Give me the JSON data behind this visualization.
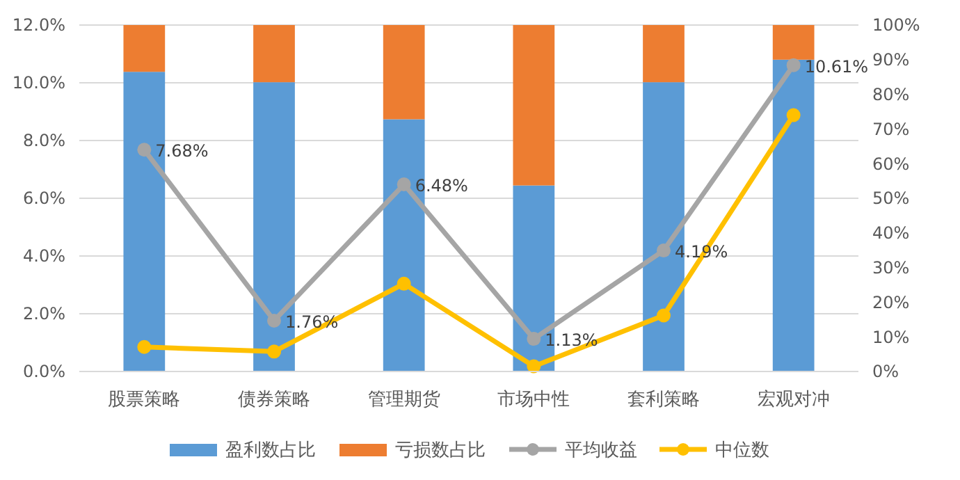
{
  "chart_data": {
    "type": "bar",
    "stacked": true,
    "categories": [
      "股票策略",
      "债券策略",
      "管理期货",
      "市场中性",
      "套利策略",
      "宏观对冲"
    ],
    "series": [
      {
        "name": "盈利数占比",
        "color": "#5b9bd5",
        "axis": "y2",
        "values": [
          86.5,
          83.5,
          72.8,
          53.7,
          83.5,
          90
        ]
      },
      {
        "name": "亏损数占比",
        "color": "#ed7d31",
        "axis": "y2",
        "values": [
          13.5,
          16.5,
          27.2,
          46.3,
          16.5,
          10
        ]
      },
      {
        "name": "平均收益",
        "type": "line",
        "color": "#a5a5a5",
        "marker": "circle",
        "values": [
          7.68,
          1.76,
          6.48,
          1.13,
          4.19,
          10.61
        ],
        "value_labels": [
          "7.68%",
          "1.76%",
          "6.48%",
          "1.13%",
          "4.19%",
          "10.61%"
        ]
      },
      {
        "name": "中位数",
        "type": "line",
        "color": "#ffc000",
        "marker": "circle",
        "values": [
          0.85,
          0.69,
          3.04,
          0.18,
          1.94,
          8.88
        ]
      }
    ],
    "ylim": [
      0,
      12
    ],
    "yticks": [
      {
        "value": 0,
        "label": "0.0%"
      },
      {
        "value": 2,
        "label": "2.0%"
      },
      {
        "value": 4,
        "label": "4.0%"
      },
      {
        "value": 6,
        "label": "6.0%"
      },
      {
        "value": 8,
        "label": "8.0%"
      },
      {
        "value": 10,
        "label": "10.0%"
      },
      {
        "value": 12,
        "label": "12.0%"
      }
    ],
    "y2lim": [
      0,
      100
    ],
    "y2ticks": [
      {
        "value": 0,
        "label": "0%"
      },
      {
        "value": 10,
        "label": "10%"
      },
      {
        "value": 20,
        "label": "20%"
      },
      {
        "value": 30,
        "label": "30%"
      },
      {
        "value": 40,
        "label": "40%"
      },
      {
        "value": 50,
        "label": "50%"
      },
      {
        "value": 60,
        "label": "60%"
      },
      {
        "value": 70,
        "label": "70%"
      },
      {
        "value": 80,
        "label": "80%"
      },
      {
        "value": 90,
        "label": "90%"
      },
      {
        "value": 100,
        "label": "100%"
      }
    ],
    "grid": "y",
    "legend": "bottom"
  }
}
